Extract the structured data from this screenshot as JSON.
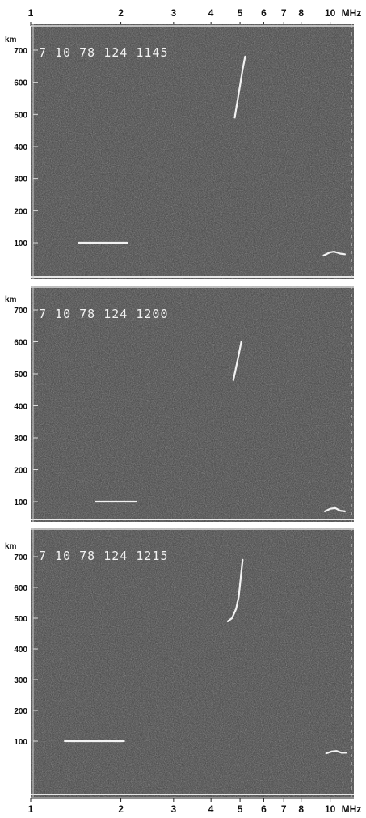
{
  "chart_data": {
    "type": "line",
    "x_unit_label": "MHz",
    "x_scale": "log",
    "x_ticks": [
      "1",
      "2",
      "3",
      "4",
      "5",
      "6",
      "7",
      "8",
      "10"
    ],
    "x_tick_values": [
      1,
      2,
      3,
      4,
      5,
      6,
      7,
      8,
      10
    ],
    "y_unit_label": "km",
    "y_ticks": [
      "700",
      "600",
      "500",
      "400",
      "300",
      "200",
      "100"
    ],
    "y_tick_values": [
      700,
      600,
      500,
      400,
      300,
      200,
      100
    ],
    "xlim": [
      1,
      12
    ],
    "ylim": [
      0,
      740
    ],
    "background_color": "#404040",
    "trace_color": "#f2f2f2",
    "panels": [
      {
        "stamp": "7 10 78 124 1145",
        "series": [
          {
            "x": [
              1.45,
              1.55,
              1.7,
              1.8,
              1.9,
              2.0,
              2.1
            ],
            "y": [
              100,
              100,
              100,
              100,
              100,
              100,
              100
            ]
          },
          {
            "x": [
              4.8,
              4.9,
              5.0,
              5.1,
              5.2
            ],
            "y": [
              490,
              540,
              590,
              640,
              680
            ]
          },
          {
            "x": [
              9.5,
              10.0,
              10.3,
              10.8,
              11.2
            ],
            "y": [
              60,
              70,
              72,
              66,
              64
            ]
          }
        ]
      },
      {
        "stamp": "7 10 78 124 1200",
        "series": [
          {
            "x": [
              1.65,
              1.8,
              1.95,
              2.1,
              2.25
            ],
            "y": [
              100,
              100,
              100,
              100,
              100
            ]
          },
          {
            "x": [
              4.75,
              4.85,
              4.95,
              5.05
            ],
            "y": [
              480,
              520,
              560,
              600
            ]
          },
          {
            "x": [
              9.6,
              10.0,
              10.4,
              10.8,
              11.2
            ],
            "y": [
              70,
              78,
              80,
              72,
              70
            ]
          }
        ]
      },
      {
        "stamp": "7 10 78 124 1215",
        "series": [
          {
            "x": [
              1.3,
              1.45,
              1.6,
              1.75,
              1.9,
              2.05
            ],
            "y": [
              100,
              100,
              100,
              100,
              100,
              100
            ]
          },
          {
            "x": [
              4.55,
              4.7,
              4.85,
              4.95,
              5.0,
              5.05,
              5.1
            ],
            "y": [
              490,
              500,
              530,
              570,
              610,
              650,
              690
            ]
          },
          {
            "x": [
              9.7,
              10.1,
              10.5,
              10.9,
              11.3
            ],
            "y": [
              60,
              66,
              68,
              62,
              62
            ]
          }
        ]
      }
    ]
  }
}
